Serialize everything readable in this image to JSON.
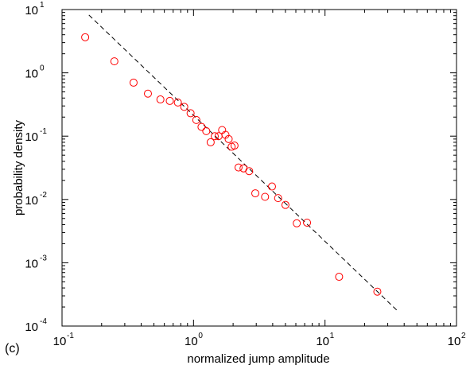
{
  "panel_label": "(c)",
  "chart_data": {
    "type": "scatter",
    "xscale": "log",
    "yscale": "log",
    "xlabel": "normalized jump amplitude",
    "ylabel": "probability density",
    "xlim": [
      0.1,
      100
    ],
    "ylim": [
      0.0001,
      10
    ],
    "grid": false,
    "x_ticks": [
      {
        "base": "10",
        "exp": "-1",
        "value": 0.1
      },
      {
        "base": "10",
        "exp": "0",
        "value": 1
      },
      {
        "base": "10",
        "exp": "1",
        "value": 10
      },
      {
        "base": "10",
        "exp": "2",
        "value": 100
      }
    ],
    "y_ticks": [
      {
        "base": "10",
        "exp": "-4",
        "value": 0.0001
      },
      {
        "base": "10",
        "exp": "-3",
        "value": 0.001
      },
      {
        "base": "10",
        "exp": "-2",
        "value": 0.01
      },
      {
        "base": "10",
        "exp": "-1",
        "value": 0.1
      },
      {
        "base": "10",
        "exp": "0",
        "value": 1
      },
      {
        "base": "10",
        "exp": "1",
        "value": 10
      }
    ],
    "points": [
      {
        "x": 0.15,
        "y": 3.65
      },
      {
        "x": 0.25,
        "y": 1.52
      },
      {
        "x": 0.35,
        "y": 0.7
      },
      {
        "x": 0.45,
        "y": 0.47
      },
      {
        "x": 0.56,
        "y": 0.38
      },
      {
        "x": 0.66,
        "y": 0.36
      },
      {
        "x": 0.76,
        "y": 0.34
      },
      {
        "x": 0.85,
        "y": 0.29
      },
      {
        "x": 0.95,
        "y": 0.23
      },
      {
        "x": 1.05,
        "y": 0.18
      },
      {
        "x": 1.15,
        "y": 0.14
      },
      {
        "x": 1.25,
        "y": 0.12
      },
      {
        "x": 1.35,
        "y": 0.08
      },
      {
        "x": 1.45,
        "y": 0.1
      },
      {
        "x": 1.55,
        "y": 0.1
      },
      {
        "x": 1.65,
        "y": 0.125
      },
      {
        "x": 1.75,
        "y": 0.105
      },
      {
        "x": 1.85,
        "y": 0.09
      },
      {
        "x": 1.95,
        "y": 0.068
      },
      {
        "x": 2.05,
        "y": 0.071
      },
      {
        "x": 2.2,
        "y": 0.032
      },
      {
        "x": 2.4,
        "y": 0.031
      },
      {
        "x": 2.65,
        "y": 0.028
      },
      {
        "x": 2.95,
        "y": 0.0125
      },
      {
        "x": 3.5,
        "y": 0.011
      },
      {
        "x": 3.95,
        "y": 0.016
      },
      {
        "x": 4.4,
        "y": 0.0105
      },
      {
        "x": 5.0,
        "y": 0.0082
      },
      {
        "x": 6.1,
        "y": 0.0042
      },
      {
        "x": 7.3,
        "y": 0.0043
      },
      {
        "x": 12.8,
        "y": 0.0006
      },
      {
        "x": 25.0,
        "y": 0.00035
      }
    ],
    "fit_line": {
      "x": [
        0.16,
        36
      ],
      "y": [
        8.2,
        0.00017
      ]
    },
    "marker_color": "#ff0000",
    "line_color": "#000000"
  }
}
